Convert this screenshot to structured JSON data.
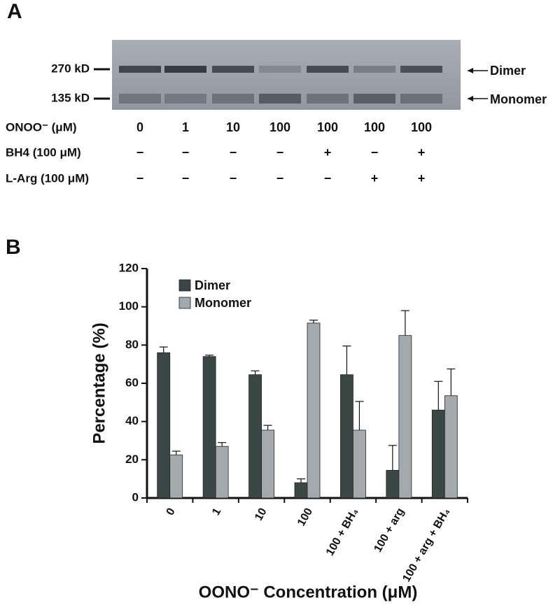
{
  "panel_a": {
    "label": "A",
    "markers": [
      "270 kD",
      "135 kD"
    ],
    "bands": [
      "Dimer",
      "Monomer"
    ],
    "rows": [
      {
        "label": "ONOO⁻ (μM)",
        "values": [
          "0",
          "1",
          "10",
          "100",
          "100",
          "100",
          "100"
        ]
      },
      {
        "label": "BH4 (100 μM)",
        "values": [
          "−",
          "−",
          "−",
          "−",
          "+",
          "−",
          "+"
        ]
      },
      {
        "label": "L-Arg (100 μM)",
        "values": [
          "−",
          "−",
          "−",
          "−",
          "−",
          "+",
          "+"
        ]
      }
    ]
  },
  "chart_data": {
    "type": "bar",
    "panel_label": "B",
    "y_label": "Percentage (%)",
    "x_label": "OONO⁻ Concentration (μM)",
    "categories": [
      "0",
      "1",
      "10",
      "100",
      "100 + BH₄",
      "100 + arg",
      "100 + arg + BH₄"
    ],
    "series": [
      {
        "name": "Dimer",
        "color": "#3b4745",
        "values": [
          76,
          74,
          64.5,
          8,
          64.5,
          14.5,
          46
        ],
        "errors": [
          3,
          0.7,
          2,
          2,
          15,
          13,
          15
        ]
      },
      {
        "name": "Monomer",
        "color": "#a3a9ad",
        "values": [
          22.5,
          27,
          35.5,
          91.5,
          35.5,
          85,
          53.5
        ],
        "errors": [
          2,
          2,
          2.5,
          1.5,
          15,
          13,
          14
        ]
      }
    ],
    "ylim": [
      0,
      120
    ],
    "yticks": [
      0,
      20,
      40,
      60,
      80,
      100,
      120
    ]
  }
}
